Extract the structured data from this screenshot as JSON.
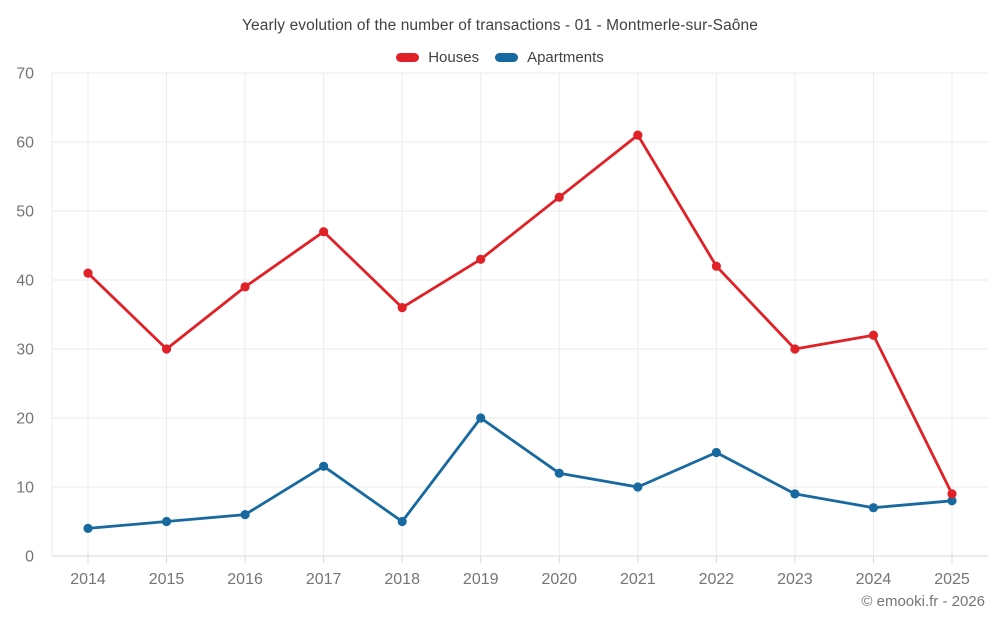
{
  "header": {
    "title": "Yearly evolution of the number of transactions - 01 - Montmerle-sur-Saône"
  },
  "footer": {
    "attribution": "© emooki.fr - 2026"
  },
  "chart_data": {
    "type": "line",
    "title": "Yearly evolution of the number of transactions - 01 - Montmerle-sur-Saône",
    "categories": [
      "2014",
      "2015",
      "2016",
      "2017",
      "2018",
      "2019",
      "2020",
      "2021",
      "2022",
      "2023",
      "2024",
      "2025"
    ],
    "series": [
      {
        "name": "Houses",
        "color": "#e02127",
        "values": [
          41,
          30,
          39,
          47,
          36,
          43,
          52,
          61,
          42,
          30,
          32,
          9
        ]
      },
      {
        "name": "Apartments",
        "color": "#17699f",
        "values": [
          4,
          5,
          6,
          13,
          5,
          20,
          12,
          10,
          15,
          9,
          7,
          8
        ]
      }
    ],
    "xlabel": "",
    "ylabel": "",
    "ylim": [
      0,
      70
    ],
    "ytick_step": 10,
    "grid": true,
    "legend_position": "top",
    "marker": "circle",
    "colors": {
      "grid": "#ebebeb",
      "axis_line": "#d9d9d9",
      "axis_label": "#757575",
      "title_text": "#424242"
    }
  }
}
